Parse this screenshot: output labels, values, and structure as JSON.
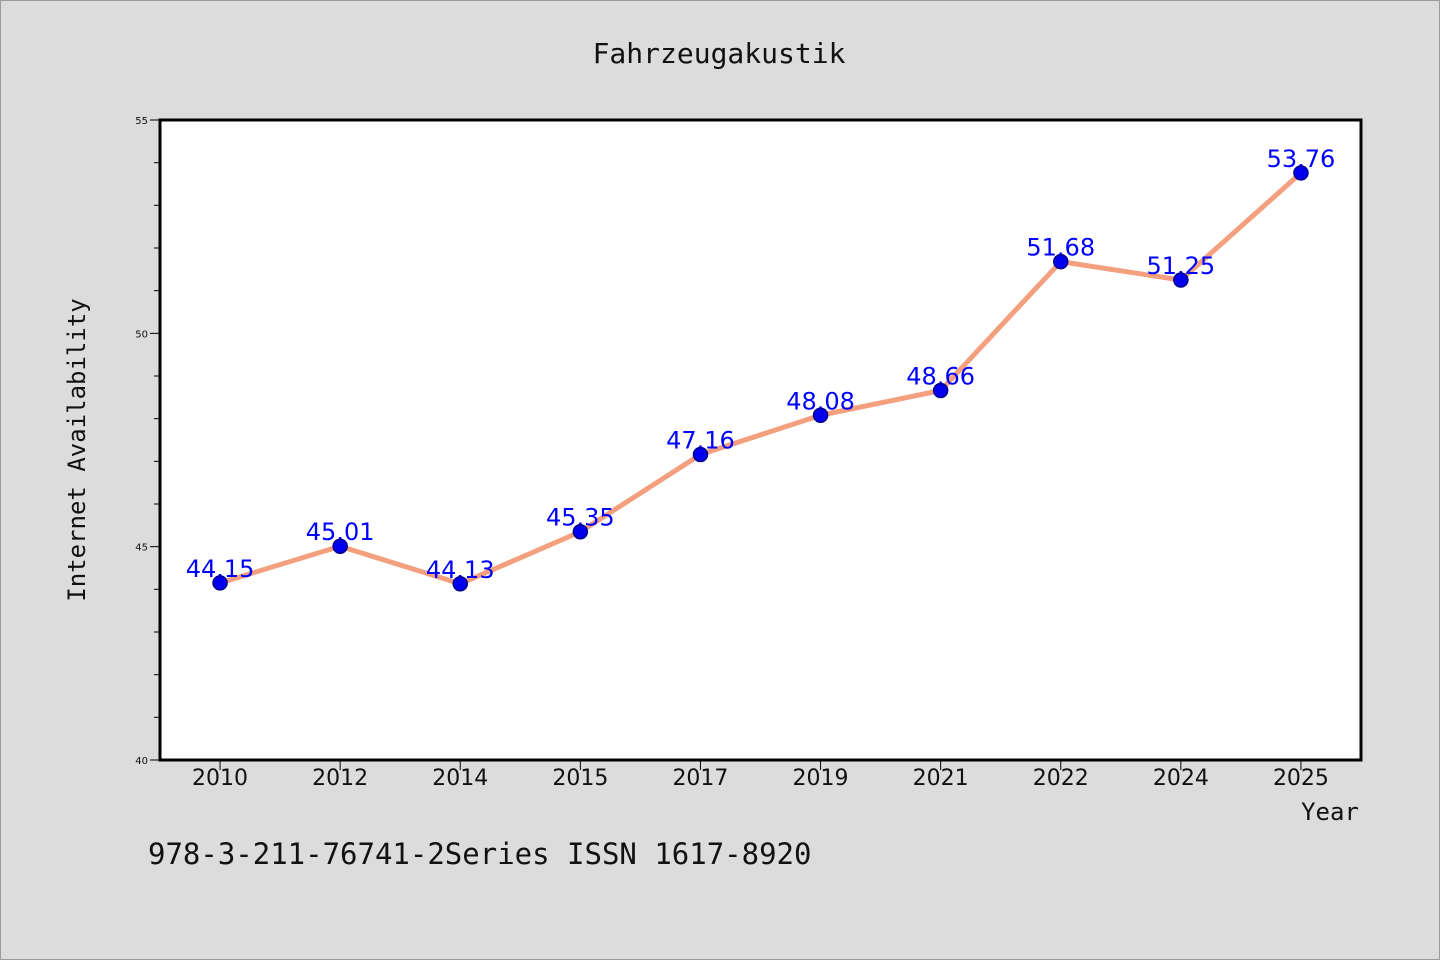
{
  "chart_data": {
    "type": "line",
    "title": "Fahrzeugakustik",
    "xlabel": "Year",
    "ylabel": "Internet Availability",
    "categories": [
      "2010",
      "2012",
      "2014",
      "2015",
      "2017",
      "2019",
      "2021",
      "2022",
      "2024",
      "2025"
    ],
    "series": [
      {
        "values": [
          44.15,
          45.01,
          44.13,
          45.35,
          47.16,
          48.08,
          48.66,
          51.68,
          51.25,
          53.76
        ],
        "data_labels": [
          "44.15",
          "45.01",
          "44.13",
          "45.35",
          "47.16",
          "48.08",
          "48.66",
          "51.68",
          "51.25",
          "53.76"
        ],
        "line_color": "#f4a07f",
        "marker_color": "#0000ee"
      }
    ],
    "ylim": [
      40,
      55
    ],
    "yticks": [
      "40",
      "45",
      "50",
      "55"
    ],
    "grid": false,
    "legend": "none",
    "label_color": "#0000ff"
  },
  "footer_text": "978-3-211-76741-2Series ISSN 1617-8920"
}
